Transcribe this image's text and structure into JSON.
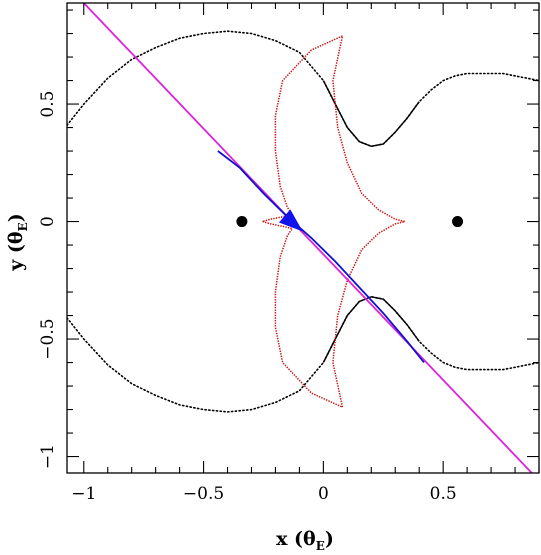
{
  "chart_data": {
    "type": "line",
    "xlabel": "x (θE)",
    "xlabel_main": "x (θ",
    "xlabel_sub": "E",
    "xlabel_close": ")",
    "ylabel": "y (θE)",
    "ylabel_main": "y (θ",
    "ylabel_sub": "E",
    "ylabel_close": ")",
    "xlim": [
      -1.07,
      0.9
    ],
    "ylim": [
      -1.07,
      0.93
    ],
    "x_ticks": [
      {
        "value": -1,
        "label": "−1"
      },
      {
        "value": -0.5,
        "label": "−0.5"
      },
      {
        "value": 0,
        "label": "0"
      },
      {
        "value": 0.5,
        "label": "0.5"
      }
    ],
    "y_ticks": [
      {
        "value": -1,
        "label": "−1"
      },
      {
        "value": -0.5,
        "label": "−0.5"
      },
      {
        "value": 0,
        "label": "0"
      },
      {
        "value": 0.5,
        "label": "0.5"
      }
    ],
    "lenses": [
      {
        "x": -0.34,
        "y": 0.0
      },
      {
        "x": 0.56,
        "y": 0.0
      }
    ],
    "source_trajectory": {
      "color": "#dd22dd",
      "x": [
        -1.0,
        0.87
      ],
      "y": [
        0.93,
        -1.07
      ]
    },
    "critical_curve": {
      "color": "#000000",
      "style": "dotted",
      "upper": {
        "x": [
          -1.07,
          -1.0,
          -0.9,
          -0.8,
          -0.7,
          -0.6,
          -0.5,
          -0.4,
          -0.3,
          -0.2,
          -0.1,
          0.0,
          0.05,
          0.1,
          0.15,
          0.2,
          0.25,
          0.3,
          0.35,
          0.4,
          0.45,
          0.5,
          0.55,
          0.6,
          0.65,
          0.7,
          0.75,
          0.8,
          0.85,
          0.9
        ],
        "y": [
          0.41,
          0.5,
          0.61,
          0.69,
          0.74,
          0.78,
          0.8,
          0.81,
          0.8,
          0.77,
          0.72,
          0.6,
          0.5,
          0.4,
          0.34,
          0.32,
          0.33,
          0.38,
          0.44,
          0.51,
          0.56,
          0.6,
          0.62,
          0.63,
          0.63,
          0.63,
          0.63,
          0.62,
          0.61,
          0.6
        ]
      }
    },
    "caustic": {
      "color": "#cc1111",
      "x": [
        -0.05,
        -0.17,
        -0.2,
        -0.2,
        -0.18,
        -0.15,
        -0.13,
        -0.17,
        -0.22,
        -0.255,
        -0.22,
        -0.17,
        -0.13,
        -0.15,
        -0.18,
        -0.2,
        -0.2,
        -0.17,
        -0.05,
        0.08,
        0.04,
        0.06,
        0.1,
        0.16,
        0.23,
        0.3,
        0.34,
        0.3,
        0.23,
        0.16,
        0.1,
        0.06,
        0.04,
        0.08,
        -0.05
      ],
      "y": [
        0.73,
        0.6,
        0.45,
        0.3,
        0.15,
        0.06,
        0.03,
        0.02,
        0.01,
        0.0,
        -0.01,
        -0.02,
        -0.03,
        -0.06,
        -0.15,
        -0.3,
        -0.45,
        -0.6,
        -0.73,
        -0.79,
        -0.6,
        -0.4,
        -0.25,
        -0.12,
        -0.05,
        -0.01,
        0.0,
        0.01,
        0.05,
        0.12,
        0.25,
        0.4,
        0.6,
        0.79,
        0.73
      ]
    },
    "caustic_cusps": {
      "x": [
        -0.25,
        0.08,
        0.34,
        0.08,
        -0.25,
        -0.255
      ],
      "y": [
        0.75,
        0.79,
        0.0,
        -0.79,
        -0.75,
        0.0
      ]
    },
    "lens_trajectory": {
      "color": "#1111cc",
      "x": [
        -0.44,
        -0.35,
        -0.25,
        -0.15,
        -0.05,
        0.05,
        0.15,
        0.25,
        0.35,
        0.42
      ],
      "y": [
        0.3,
        0.23,
        0.12,
        0.02,
        -0.07,
        -0.17,
        -0.28,
        -0.39,
        -0.51,
        -0.6
      ]
    },
    "arrow": {
      "color": "#1111ee",
      "x": -0.1,
      "y": -0.03,
      "dx": 0.08,
      "dy": -0.07
    }
  }
}
